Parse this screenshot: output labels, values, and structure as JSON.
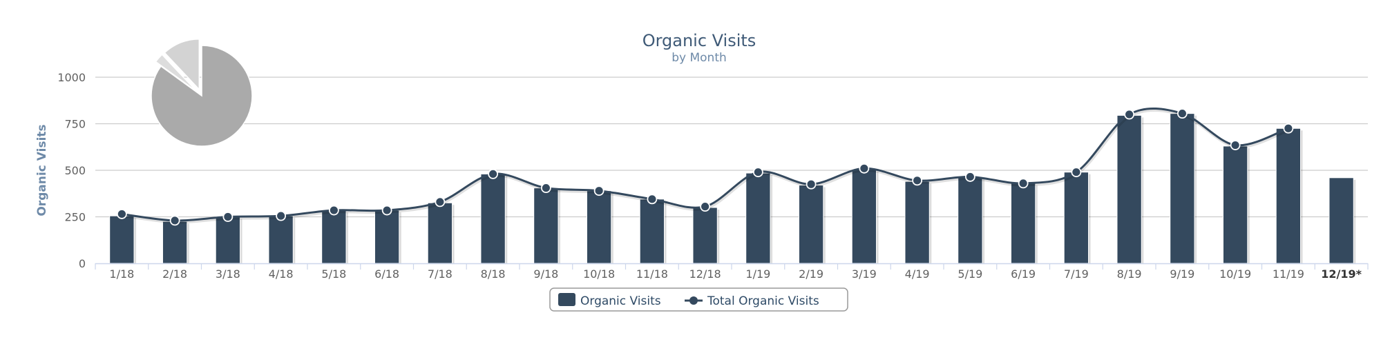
{
  "chart_data": {
    "type": "bar",
    "title": "Organic Visits",
    "subtitle": "by Month",
    "ylabel": "Organic Visits",
    "xlabel": "",
    "ylim": [
      0,
      1000
    ],
    "yticks": [
      0,
      250,
      500,
      750,
      1000
    ],
    "grid": true,
    "legend": "bottom-center",
    "categories": [
      "1/18",
      "2/18",
      "3/18",
      "4/18",
      "5/18",
      "6/18",
      "7/18",
      "8/18",
      "9/18",
      "10/18",
      "11/18",
      "12/18",
      "1/19",
      "2/19",
      "3/19",
      "4/19",
      "5/19",
      "6/19",
      "7/19",
      "8/19",
      "9/19",
      "10/19",
      "11/19",
      "12/19*"
    ],
    "highlight_category": "12/19*",
    "series": [
      {
        "name": "Organic Visits",
        "type": "bar",
        "color": "#34495e",
        "values": [
          255,
          225,
          250,
          255,
          285,
          285,
          325,
          480,
          405,
          390,
          345,
          300,
          485,
          420,
          505,
          440,
          465,
          430,
          490,
          795,
          805,
          630,
          725,
          460
        ]
      },
      {
        "name": "Total Organic Visits",
        "type": "line",
        "color": "#34495e",
        "values": [
          265,
          230,
          250,
          255,
          285,
          285,
          330,
          480,
          405,
          390,
          345,
          305,
          490,
          425,
          510,
          445,
          465,
          430,
          490,
          800,
          805,
          635,
          725,
          null
        ]
      }
    ],
    "inset_pie": {
      "colors": [
        "#aaaaaa",
        "#dddddd",
        "#d3d3d3"
      ],
      "values": [
        85,
        3,
        12
      ]
    }
  }
}
